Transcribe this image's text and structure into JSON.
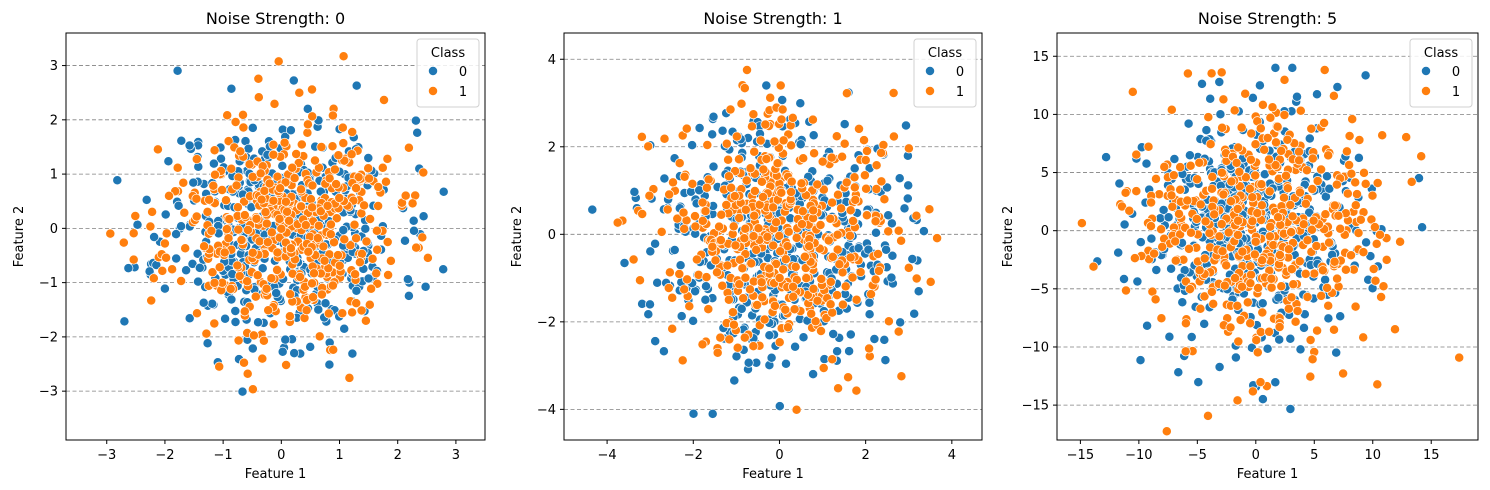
{
  "chart_data": [
    {
      "type": "scatter",
      "title": "Noise Strength: 0",
      "xlabel": "Feature 1",
      "ylabel": "Feature 2",
      "xlim": [
        -3.7,
        3.5
      ],
      "ylim": [
        -3.9,
        3.6
      ],
      "xticks": [
        -3,
        -2,
        -1,
        0,
        1,
        2,
        3
      ],
      "yticks": [
        -3,
        -2,
        -1,
        0,
        1,
        2,
        3
      ],
      "grid": "horizontal-dashed",
      "legend": {
        "title": "Class",
        "placement": "top-right",
        "entries": [
          "0",
          "1"
        ]
      },
      "series": [
        {
          "name": "0",
          "color": "#1f77b4",
          "n": 500,
          "sx": 1.0,
          "sy": 1.0,
          "seed": 11
        },
        {
          "name": "1",
          "color": "#ff7f0e",
          "n": 500,
          "sx": 1.0,
          "sy": 1.0,
          "seed": 23
        }
      ]
    },
    {
      "type": "scatter",
      "title": "Noise Strength: 1",
      "xlabel": "Feature 1",
      "ylabel": "Feature 2",
      "xlim": [
        -5.0,
        4.7
      ],
      "ylim": [
        -4.7,
        4.6
      ],
      "xticks": [
        -4,
        -2,
        0,
        2,
        4
      ],
      "yticks": [
        -4,
        -2,
        0,
        2,
        4
      ],
      "grid": "horizontal-dashed",
      "legend": {
        "title": "Class",
        "placement": "top-right",
        "entries": [
          "0",
          "1"
        ]
      },
      "series": [
        {
          "name": "0",
          "color": "#1f77b4",
          "n": 500,
          "sx": 1.4,
          "sy": 1.4,
          "seed": 37
        },
        {
          "name": "1",
          "color": "#ff7f0e",
          "n": 500,
          "sx": 1.4,
          "sy": 1.4,
          "seed": 41
        }
      ]
    },
    {
      "type": "scatter",
      "title": "Noise Strength: 5",
      "xlabel": "Feature 1",
      "ylabel": "Feature 2",
      "xlim": [
        -17.0,
        19.0
      ],
      "ylim": [
        -18.0,
        17.0
      ],
      "xticks": [
        -15,
        -10,
        -5,
        0,
        5,
        10,
        15
      ],
      "yticks": [
        -15,
        -10,
        -5,
        0,
        5,
        10,
        15
      ],
      "grid": "horizontal-dashed",
      "legend": {
        "title": "Class",
        "placement": "top-right",
        "entries": [
          "0",
          "1"
        ]
      },
      "series": [
        {
          "name": "0",
          "color": "#1f77b4",
          "n": 500,
          "sx": 5.1,
          "sy": 5.1,
          "seed": 53
        },
        {
          "name": "1",
          "color": "#ff7f0e",
          "n": 500,
          "sx": 5.1,
          "sy": 5.1,
          "seed": 67
        }
      ]
    }
  ]
}
